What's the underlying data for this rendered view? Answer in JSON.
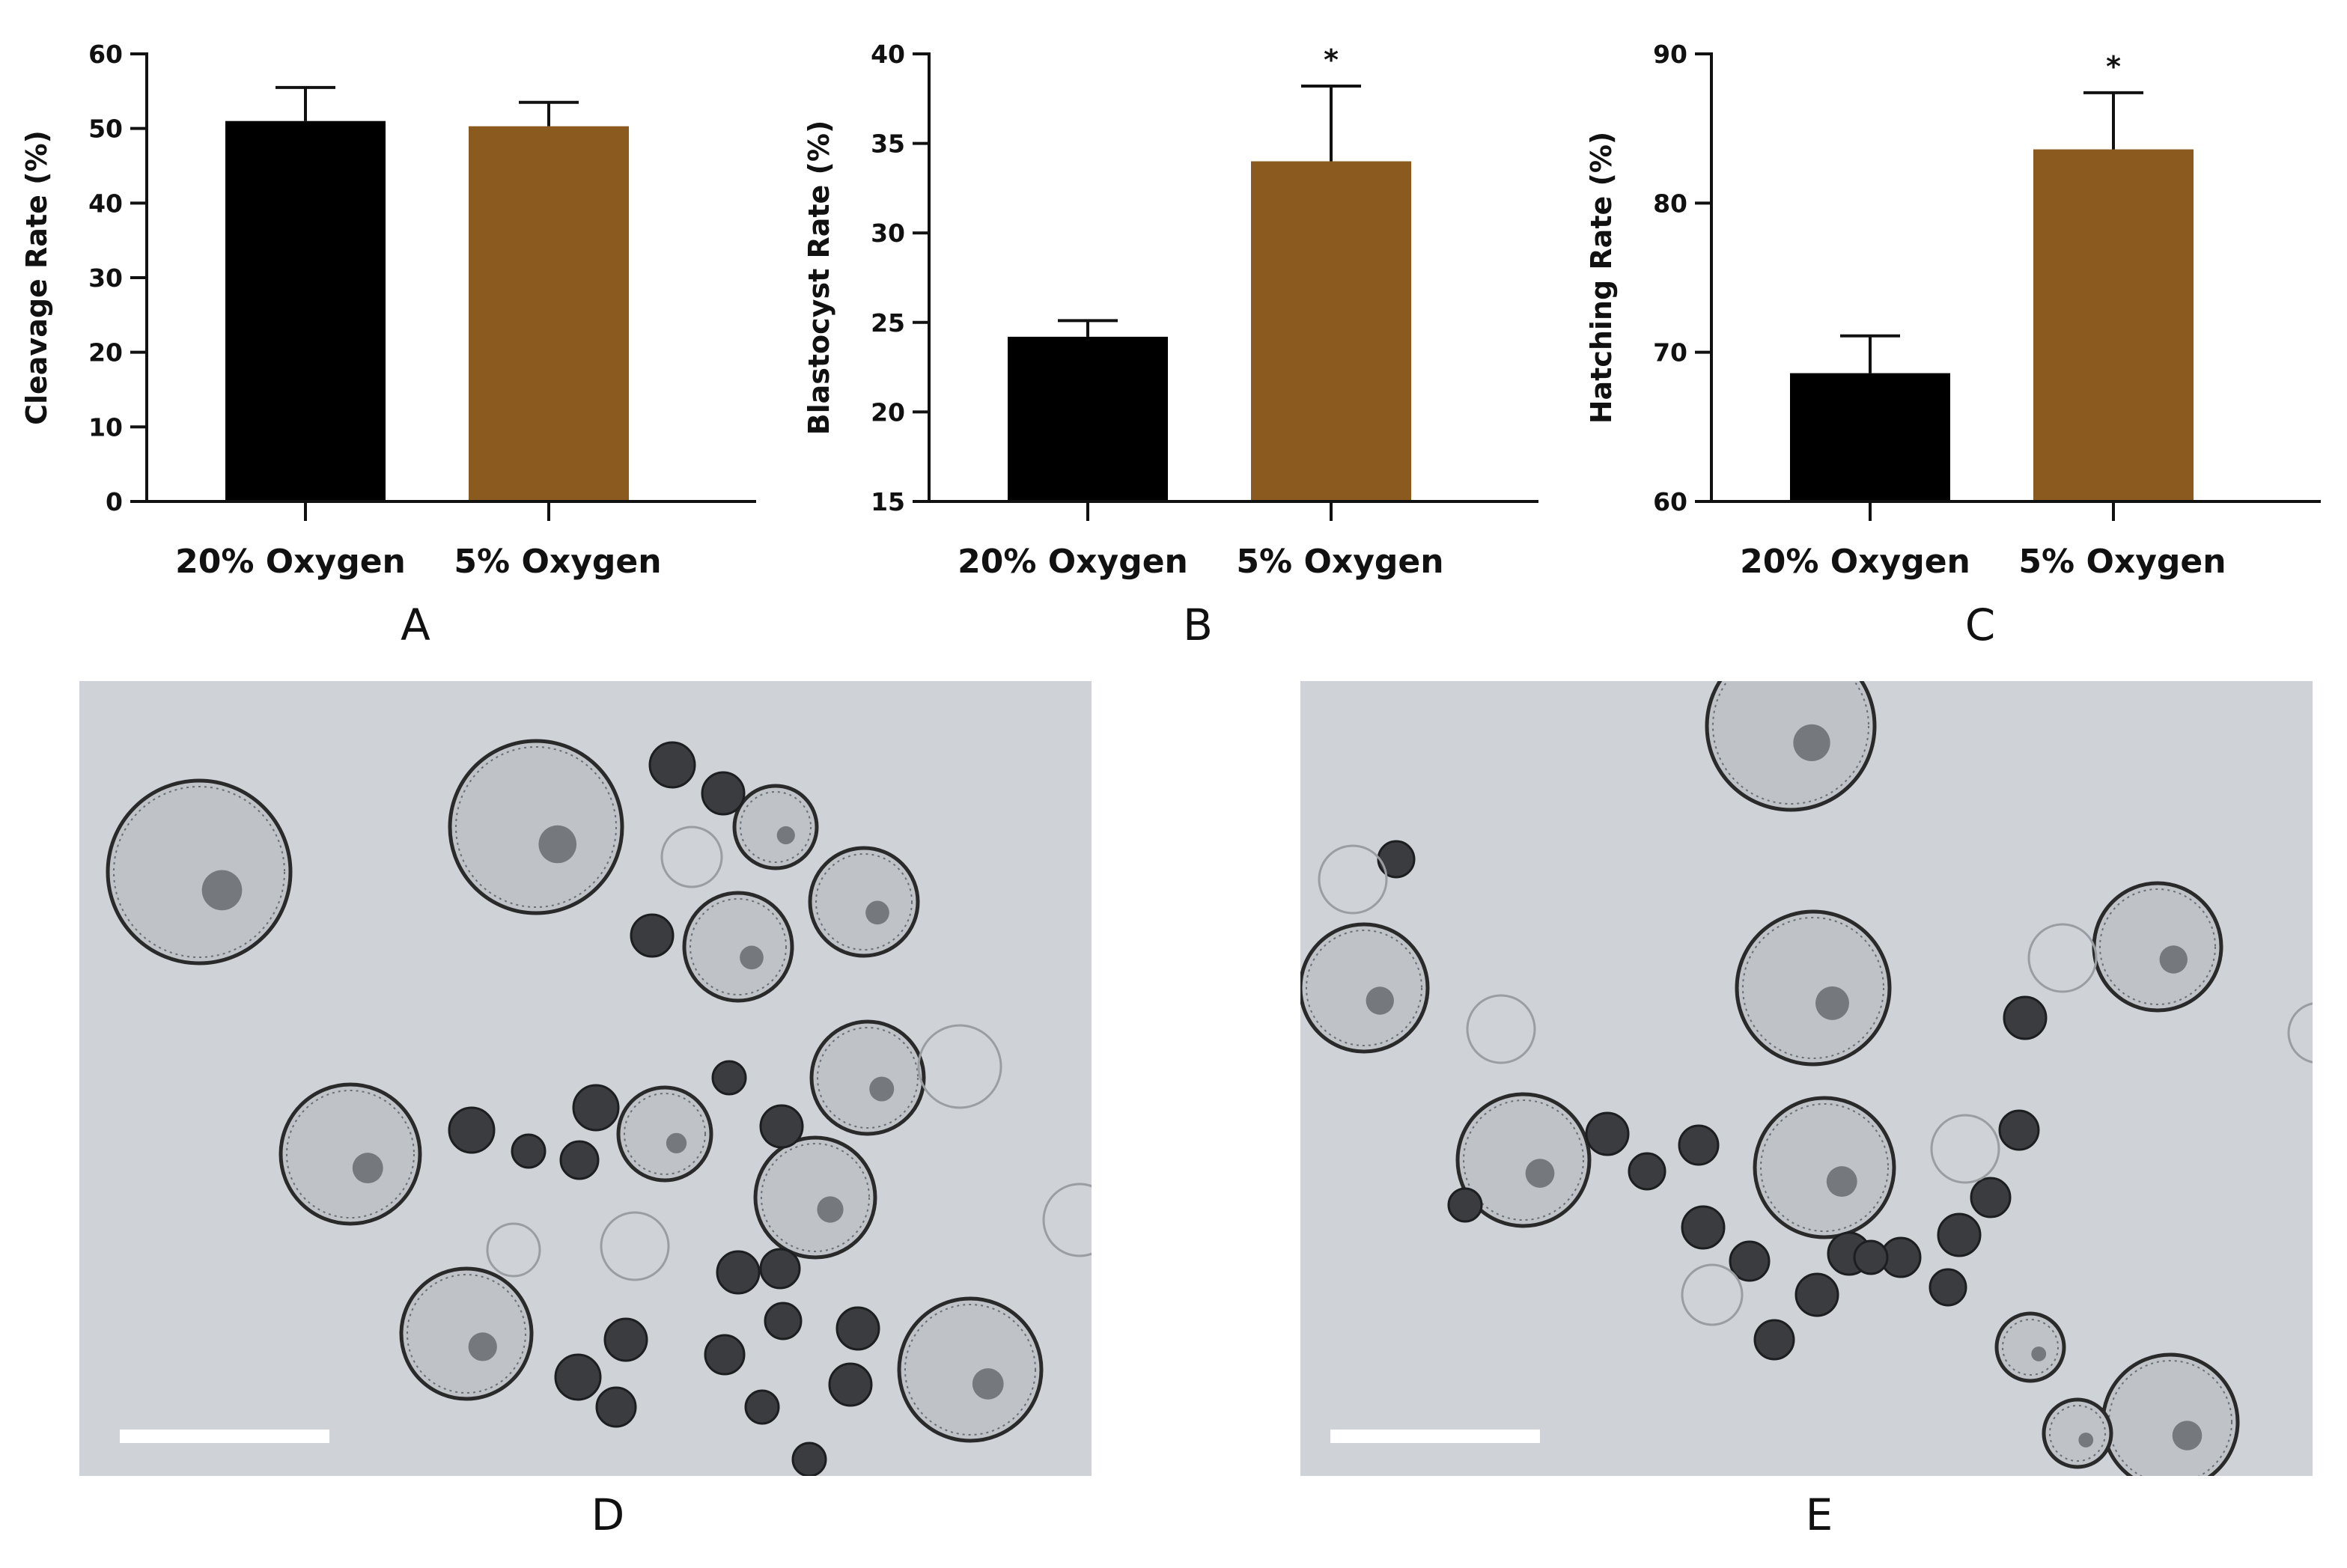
{
  "chart_data": [
    {
      "type": "bar",
      "panel": "A",
      "categories": [
        "20% Oxygen",
        "5% Oxygen"
      ],
      "values": [
        51,
        50.3
      ],
      "errors": [
        4.5,
        3.2
      ],
      "significance": [
        "",
        ""
      ],
      "ylabel": "Cleavage Rate (%)",
      "ylim": [
        0,
        60
      ],
      "yticks": [
        0,
        10,
        20,
        30,
        40,
        50,
        60
      ],
      "colors": [
        "#000000",
        "#8B5A1E"
      ]
    },
    {
      "type": "bar",
      "panel": "B",
      "categories": [
        "20% Oxygen",
        "5% Oxygen"
      ],
      "values": [
        24.2,
        34
      ],
      "errors": [
        0.9,
        4.2
      ],
      "significance": [
        "",
        "*"
      ],
      "ylabel": "Blastocyst Rate (%)",
      "ylim": [
        15,
        40
      ],
      "yticks": [
        15,
        20,
        25,
        30,
        35,
        40
      ],
      "colors": [
        "#000000",
        "#8B5A1E"
      ]
    },
    {
      "type": "bar",
      "panel": "C",
      "categories": [
        "20% Oxygen",
        "5% Oxygen"
      ],
      "values": [
        68.6,
        83.6
      ],
      "errors": [
        2.5,
        3.8
      ],
      "significance": [
        "",
        "*"
      ],
      "ylabel": "Hatching Rate (%)",
      "ylim": [
        60,
        90
      ],
      "yticks": [
        60,
        70,
        80,
        90
      ],
      "colors": [
        "#000000",
        "#8B5A1E"
      ]
    }
  ],
  "panels": {
    "micro_d_label": "D",
    "micro_e_label": "E"
  }
}
